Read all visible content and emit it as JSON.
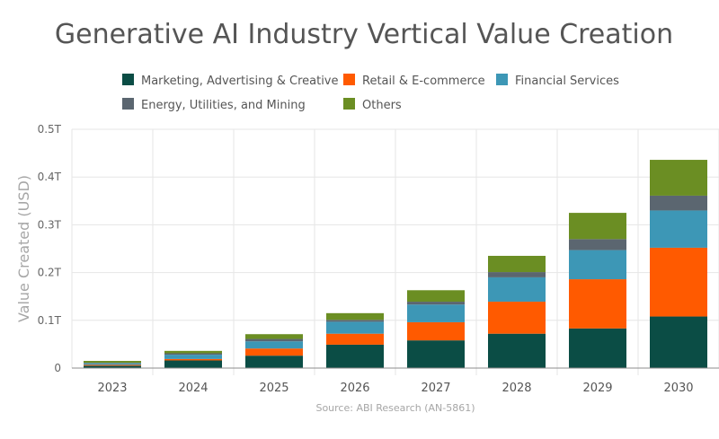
{
  "chart_data": {
    "type": "bar",
    "stacked": true,
    "title": "Generative AI Industry Vertical Value Creation",
    "ylabel": "Value Created (USD)",
    "xlabel": "",
    "source": "Source: ABI Research (AN-5861)",
    "categories": [
      "2023",
      "2024",
      "2025",
      "2026",
      "2027",
      "2028",
      "2029",
      "2030"
    ],
    "ylim": [
      0,
      0.5
    ],
    "yticks": [
      {
        "value": 0,
        "label": "0"
      },
      {
        "value": 0.1,
        "label": "0.1T"
      },
      {
        "value": 0.2,
        "label": "0.2T"
      },
      {
        "value": 0.3,
        "label": "0.3T"
      },
      {
        "value": 0.4,
        "label": "0.4T"
      },
      {
        "value": 0.5,
        "label": "0.5T"
      }
    ],
    "grid": true,
    "legend_position": "top",
    "series": [
      {
        "name": "Marketing, Advertising & Creative",
        "color": "#0b4d45",
        "values": [
          0.005,
          0.016,
          0.026,
          0.049,
          0.058,
          0.072,
          0.083,
          0.108
        ]
      },
      {
        "name": "Retail & E-commerce",
        "color": "#ff5a00",
        "values": [
          0.002,
          0.003,
          0.015,
          0.023,
          0.038,
          0.067,
          0.103,
          0.144
        ]
      },
      {
        "name": "Financial Services",
        "color": "#3d97b6",
        "values": [
          0.003,
          0.009,
          0.015,
          0.025,
          0.037,
          0.051,
          0.061,
          0.078
        ]
      },
      {
        "name": "Energy, Utilities, and Mining",
        "color": "#5b6670",
        "values": [
          0.001,
          0.003,
          0.005,
          0.004,
          0.006,
          0.011,
          0.023,
          0.031
        ]
      },
      {
        "name": "Others",
        "color": "#6b8e23",
        "values": [
          0.004,
          0.005,
          0.01,
          0.014,
          0.024,
          0.034,
          0.055,
          0.075
        ]
      }
    ]
  }
}
